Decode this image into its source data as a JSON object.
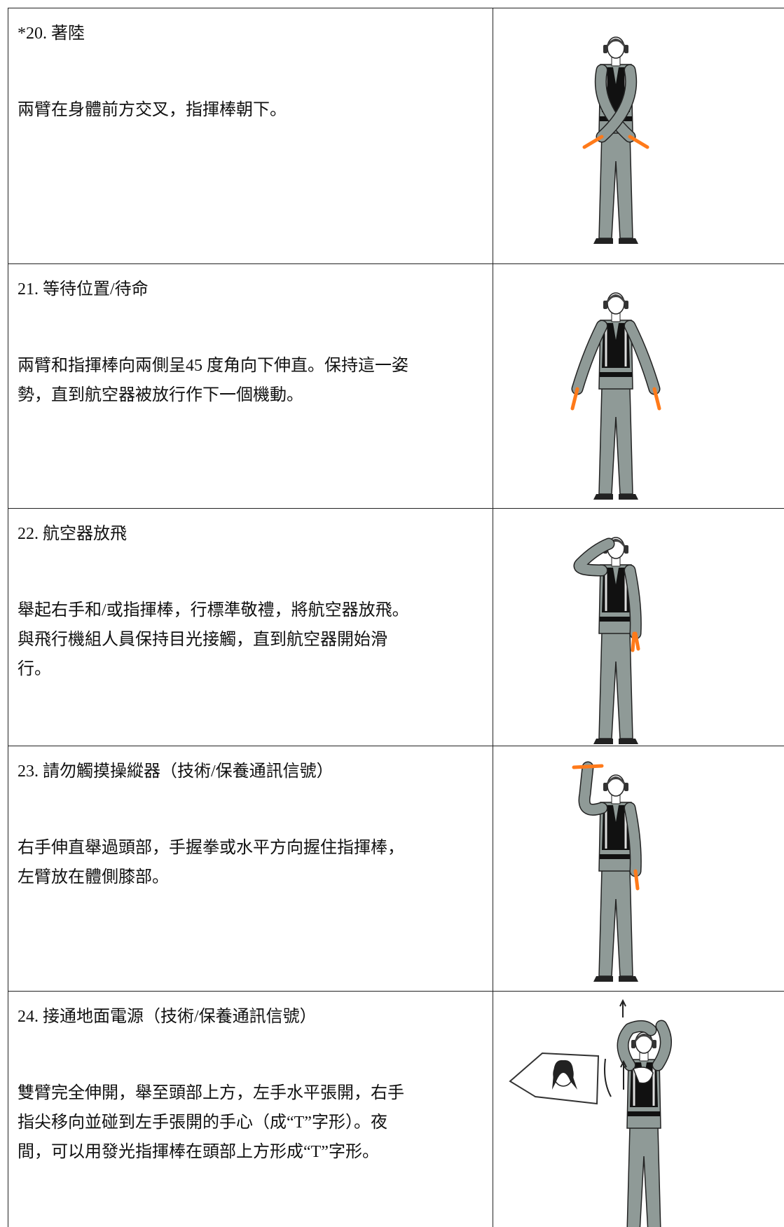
{
  "rows": [
    {
      "title": "*20. 著陸",
      "description": [
        "兩臂在身體前方交叉，指揮棒朝下。"
      ]
    },
    {
      "title": "21. 等待位置/待命",
      "description": [
        "兩臂和指揮棒向兩側呈45 度角向下伸直。保持這一姿",
        "勢，直到航空器被放行作下一個機動。"
      ]
    },
    {
      "title": "22. 航空器放飛",
      "description": [
        "舉起右手和/或指揮棒，行標準敬禮，將航空器放飛。",
        "與飛行機組人員保持目光接觸，直到航空器開始滑",
        "行。"
      ]
    },
    {
      "title": "23. 請勿觸摸操縱器（技術/保養通訊信號）",
      "description": [
        "右手伸直舉過頭部，手握拳或水平方向握住指揮棒，",
        "左臂放在體側膝部。"
      ]
    },
    {
      "title": "24. 接通地面電源（技術/保養通訊信號）",
      "description": [
        "雙臂完全伸開，舉至頭部上方，左手水平張開，右手",
        "指尖移向並碰到左手張開的手心（成“T”字形）。夜",
        "間，可以用發光指揮棒在頭部上方形成“T”字形。"
      ]
    }
  ]
}
